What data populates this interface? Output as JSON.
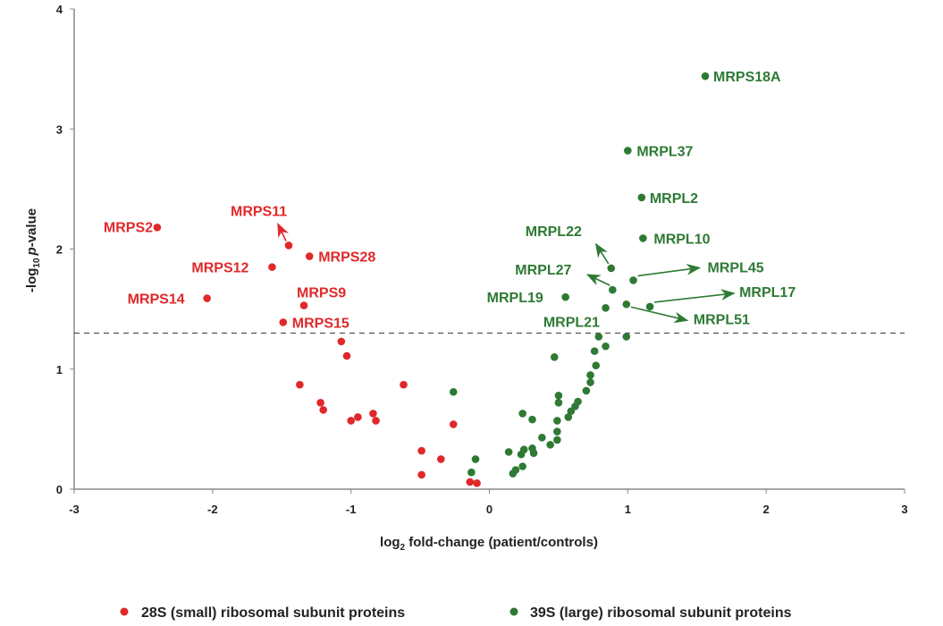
{
  "chart_data": {
    "type": "scatter",
    "title": "",
    "xlabel": "log2 fold-change (patient/controls)",
    "xlabel_parts": {
      "pre": "log",
      "sub": "2",
      "post": " fold-change (patient/controls)"
    },
    "ylabel": "-log10 p-value",
    "ylabel_parts": {
      "pre": "-log",
      "sub": "10",
      "italic": "p",
      "post": "-value"
    },
    "xlim": [
      -3,
      3
    ],
    "ylim": [
      0,
      4
    ],
    "xticks": [
      "-3",
      "-2",
      "-1",
      "0",
      "1",
      "2",
      "3"
    ],
    "yticks": [
      "0",
      "1",
      "2",
      "3",
      "4"
    ],
    "threshold_y": 1.3,
    "grid": false,
    "legend_position": "bottom",
    "colors": {
      "small": "#e0282a",
      "large": "#2e7a34"
    },
    "series": [
      {
        "name": "28S (small) ribosomal subunit proteins",
        "key": "small",
        "points": [
          {
            "x": -2.4,
            "y": 2.18,
            "label": "MRPS2"
          },
          {
            "x": -1.45,
            "y": 2.03,
            "label": "MRPS11"
          },
          {
            "x": -1.3,
            "y": 1.94,
            "label": "MRPS28"
          },
          {
            "x": -1.57,
            "y": 1.85,
            "label": "MRPS12"
          },
          {
            "x": -1.34,
            "y": 1.53,
            "label": "MRPS9"
          },
          {
            "x": -2.04,
            "y": 1.59,
            "label": "MRPS14"
          },
          {
            "x": -1.49,
            "y": 1.39,
            "label": "MRPS15"
          },
          {
            "x": -1.07,
            "y": 1.23
          },
          {
            "x": -1.03,
            "y": 1.11
          },
          {
            "x": -1.37,
            "y": 0.87
          },
          {
            "x": -1.22,
            "y": 0.72
          },
          {
            "x": -1.2,
            "y": 0.66
          },
          {
            "x": -1.0,
            "y": 0.57
          },
          {
            "x": -0.95,
            "y": 0.6
          },
          {
            "x": -0.84,
            "y": 0.63
          },
          {
            "x": -0.82,
            "y": 0.57
          },
          {
            "x": -0.62,
            "y": 0.87
          },
          {
            "x": -0.26,
            "y": 0.54
          },
          {
            "x": -0.49,
            "y": 0.32
          },
          {
            "x": -0.35,
            "y": 0.25
          },
          {
            "x": -0.49,
            "y": 0.12
          },
          {
            "x": -0.14,
            "y": 0.06
          },
          {
            "x": -0.09,
            "y": 0.05
          }
        ]
      },
      {
        "name": "39S (large) ribosomal subunit proteins",
        "key": "large",
        "points": [
          {
            "x": 1.56,
            "y": 3.44,
            "label": "MRPS18A"
          },
          {
            "x": 1.0,
            "y": 2.82,
            "label": "MRPL37"
          },
          {
            "x": 1.1,
            "y": 2.43,
            "label": "MRPL2"
          },
          {
            "x": 1.11,
            "y": 2.09,
            "label": "MRPL10"
          },
          {
            "x": 0.88,
            "y": 1.84,
            "label": "MRPL22"
          },
          {
            "x": 1.04,
            "y": 1.74,
            "label": "MRPL45"
          },
          {
            "x": 0.89,
            "y": 1.66,
            "label": "MRPL27"
          },
          {
            "x": 0.55,
            "y": 1.6,
            "label": "MRPL19"
          },
          {
            "x": 1.16,
            "y": 1.52,
            "label": "MRPL17"
          },
          {
            "x": 0.99,
            "y": 1.54,
            "label": "MRPL51"
          },
          {
            "x": 0.84,
            "y": 1.51
          },
          {
            "x": 0.79,
            "y": 1.27,
            "label": "MRPL21"
          },
          {
            "x": 0.99,
            "y": 1.27
          },
          {
            "x": 0.84,
            "y": 1.19
          },
          {
            "x": 0.76,
            "y": 1.15
          },
          {
            "x": 0.47,
            "y": 1.1
          },
          {
            "x": 0.77,
            "y": 1.03
          },
          {
            "x": 0.73,
            "y": 0.95
          },
          {
            "x": 0.73,
            "y": 0.89
          },
          {
            "x": 0.7,
            "y": 0.82
          },
          {
            "x": -0.26,
            "y": 0.81
          },
          {
            "x": 0.5,
            "y": 0.78
          },
          {
            "x": 0.5,
            "y": 0.72
          },
          {
            "x": 0.64,
            "y": 0.73
          },
          {
            "x": 0.62,
            "y": 0.69
          },
          {
            "x": 0.59,
            "y": 0.65
          },
          {
            "x": 0.57,
            "y": 0.6
          },
          {
            "x": 0.24,
            "y": 0.63
          },
          {
            "x": 0.31,
            "y": 0.58
          },
          {
            "x": 0.49,
            "y": 0.57
          },
          {
            "x": 0.49,
            "y": 0.48
          },
          {
            "x": 0.49,
            "y": 0.41
          },
          {
            "x": 0.38,
            "y": 0.43
          },
          {
            "x": 0.44,
            "y": 0.37
          },
          {
            "x": 0.31,
            "y": 0.34
          },
          {
            "x": 0.32,
            "y": 0.3
          },
          {
            "x": 0.25,
            "y": 0.33
          },
          {
            "x": 0.23,
            "y": 0.29
          },
          {
            "x": 0.14,
            "y": 0.31
          },
          {
            "x": 0.24,
            "y": 0.19
          },
          {
            "x": 0.19,
            "y": 0.16
          },
          {
            "x": 0.17,
            "y": 0.13
          },
          {
            "x": -0.1,
            "y": 0.25
          },
          {
            "x": -0.13,
            "y": 0.14
          }
        ]
      }
    ]
  }
}
